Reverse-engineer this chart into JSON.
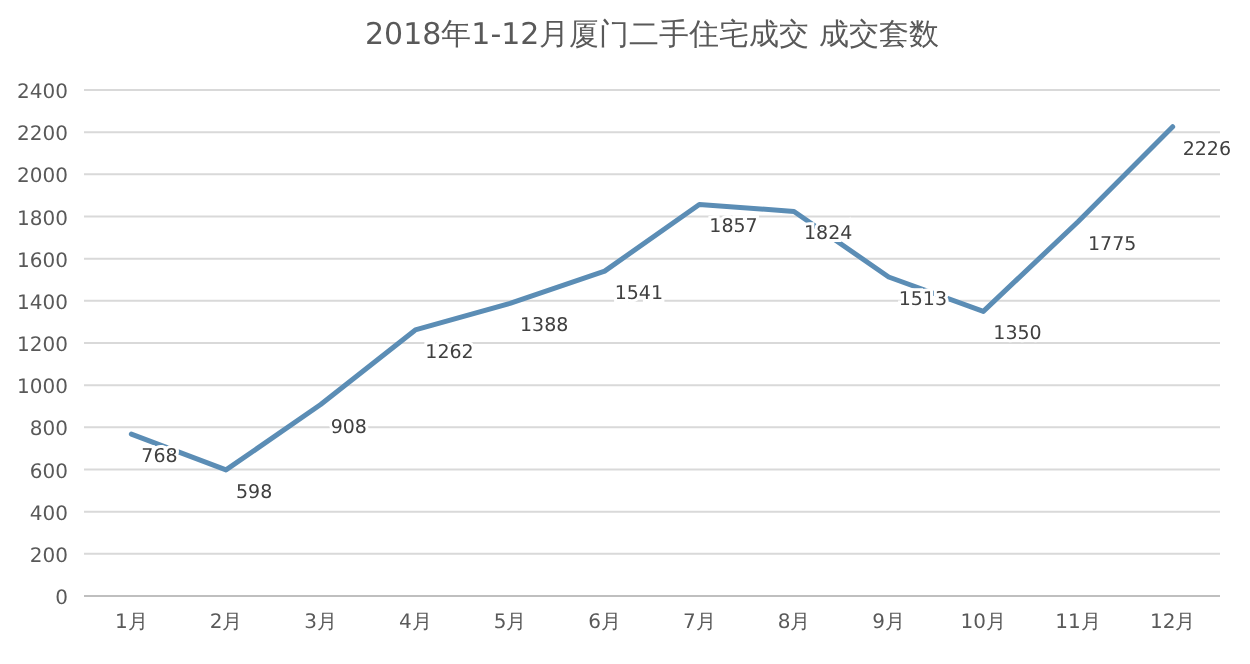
{
  "chart_data": {
    "type": "line",
    "title": "2018年1-12月厦门二手住宅成交 成交套数",
    "categories": [
      "1月",
      "2月",
      "3月",
      "4月",
      "5月",
      "6月",
      "7月",
      "8月",
      "9月",
      "10月",
      "11月",
      "12月"
    ],
    "series": [
      {
        "color": "#5b8db5",
        "values": [
          768,
          598,
          908,
          1262,
          1388,
          1541,
          1857,
          1824,
          1513,
          1350,
          1775,
          2226
        ]
      }
    ],
    "ylim": [
      0,
      2400
    ],
    "yticks": [
      0,
      200,
      400,
      600,
      800,
      1000,
      1200,
      1400,
      1600,
      1800,
      2000,
      2200,
      2400
    ],
    "grid": "y",
    "data_labels": true,
    "marker": "none",
    "line_style": "solid"
  }
}
